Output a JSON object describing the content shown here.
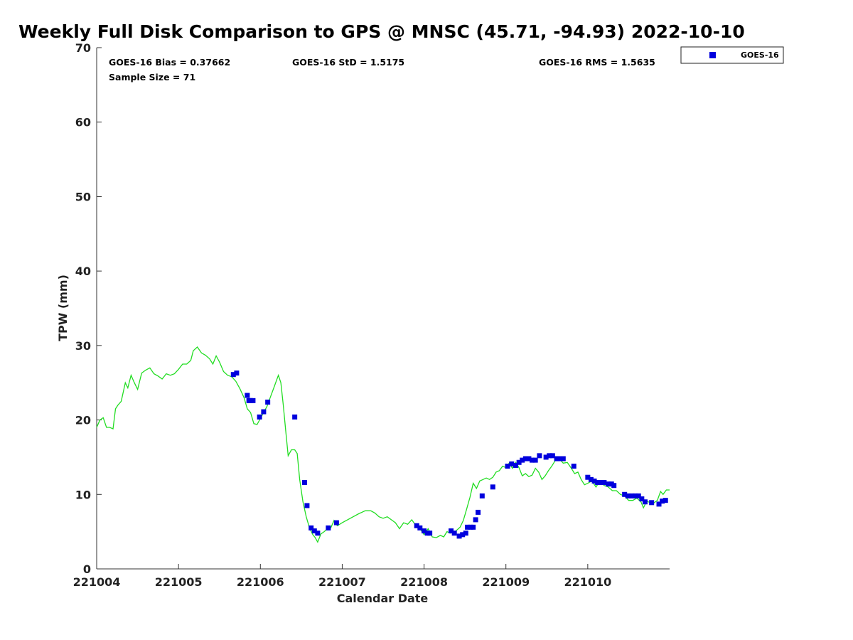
{
  "chart_data": {
    "type": "scatter",
    "title": "Weekly Full Disk Comparison to GPS @ MNSC (45.71, -94.93) 2022-10-10",
    "xlabel": "Calendar Date",
    "ylabel": "TPW (mm)",
    "xlim": [
      221004,
      221011
    ],
    "ylim": [
      0,
      70
    ],
    "xticks": [
      221004,
      221005,
      221006,
      221007,
      221008,
      221009,
      221010
    ],
    "xtick_labels": [
      "221004",
      "221005",
      "221006",
      "221007",
      "221008",
      "221009",
      "221010"
    ],
    "yticks": [
      0,
      10,
      20,
      30,
      40,
      50,
      60,
      70
    ],
    "ytick_labels": [
      "0",
      "10",
      "20",
      "30",
      "40",
      "50",
      "60",
      "70"
    ],
    "grid": false,
    "legend_position": "outside-top-right",
    "stats": {
      "bias": "GOES-16 Bias = 0.37662",
      "std": "GOES-16 StD = 1.5175",
      "rms": "GOES-16 RMS = 1.5635",
      "sample_size": "Sample Size = 71"
    },
    "series": [
      {
        "name": "GOES-16",
        "kind": "scatter",
        "marker": "square",
        "color": "#0000dd",
        "points": [
          [
            221005.67,
            26.1
          ],
          [
            221005.71,
            26.3
          ],
          [
            221005.84,
            23.3
          ],
          [
            221005.86,
            22.6
          ],
          [
            221005.88,
            22.6
          ],
          [
            221005.91,
            22.6
          ],
          [
            221005.99,
            20.4
          ],
          [
            221006.04,
            21.1
          ],
          [
            221006.09,
            22.4
          ],
          [
            221006.42,
            20.4
          ],
          [
            221006.54,
            11.6
          ],
          [
            221006.57,
            8.5
          ],
          [
            221006.62,
            5.5
          ],
          [
            221006.66,
            5.1
          ],
          [
            221006.7,
            4.8
          ],
          [
            221006.83,
            5.5
          ],
          [
            221006.93,
            6.2
          ],
          [
            221007.91,
            5.8
          ],
          [
            221007.95,
            5.5
          ],
          [
            221008.0,
            5.1
          ],
          [
            221008.04,
            4.8
          ],
          [
            221008.07,
            4.8
          ],
          [
            221008.33,
            5.1
          ],
          [
            221008.37,
            4.8
          ],
          [
            221008.43,
            4.4
          ],
          [
            221008.47,
            4.6
          ],
          [
            221008.51,
            4.8
          ],
          [
            221008.53,
            5.6
          ],
          [
            221008.57,
            5.6
          ],
          [
            221008.6,
            5.6
          ],
          [
            221008.63,
            6.6
          ],
          [
            221008.66,
            7.6
          ],
          [
            221008.71,
            9.8
          ],
          [
            221008.84,
            11.0
          ],
          [
            221009.02,
            13.8
          ],
          [
            221009.07,
            14.1
          ],
          [
            221009.12,
            13.9
          ],
          [
            221009.16,
            14.3
          ],
          [
            221009.2,
            14.6
          ],
          [
            221009.24,
            14.8
          ],
          [
            221009.28,
            14.8
          ],
          [
            221009.32,
            14.6
          ],
          [
            221009.36,
            14.6
          ],
          [
            221009.41,
            15.2
          ],
          [
            221009.49,
            15.0
          ],
          [
            221009.53,
            15.2
          ],
          [
            221009.57,
            15.2
          ],
          [
            221009.62,
            14.8
          ],
          [
            221009.66,
            14.8
          ],
          [
            221009.7,
            14.8
          ],
          [
            221009.83,
            13.8
          ],
          [
            221010.0,
            12.3
          ],
          [
            221010.04,
            12.0
          ],
          [
            221010.08,
            11.8
          ],
          [
            221010.12,
            11.6
          ],
          [
            221010.16,
            11.6
          ],
          [
            221010.2,
            11.6
          ],
          [
            221010.25,
            11.4
          ],
          [
            221010.29,
            11.4
          ],
          [
            221010.32,
            11.2
          ],
          [
            221010.45,
            10.0
          ],
          [
            221010.49,
            9.8
          ],
          [
            221010.54,
            9.8
          ],
          [
            221010.58,
            9.8
          ],
          [
            221010.62,
            9.8
          ],
          [
            221010.66,
            9.4
          ],
          [
            221010.7,
            9.0
          ],
          [
            221010.78,
            8.9
          ],
          [
            221010.87,
            8.7
          ],
          [
            221010.91,
            9.1
          ],
          [
            221010.95,
            9.2
          ]
        ]
      },
      {
        "kind": "line",
        "color": "#22dd22",
        "points": [
          [
            221004.0,
            19.0
          ],
          [
            221004.04,
            20.0
          ],
          [
            221004.08,
            20.3
          ],
          [
            221004.12,
            19.0
          ],
          [
            221004.16,
            19.0
          ],
          [
            221004.2,
            18.8
          ],
          [
            221004.23,
            21.5
          ],
          [
            221004.26,
            22.0
          ],
          [
            221004.3,
            22.5
          ],
          [
            221004.35,
            25.0
          ],
          [
            221004.38,
            24.3
          ],
          [
            221004.42,
            26.0
          ],
          [
            221004.46,
            25.0
          ],
          [
            221004.5,
            24.1
          ],
          [
            221004.55,
            26.3
          ],
          [
            221004.6,
            26.7
          ],
          [
            221004.65,
            27.0
          ],
          [
            221004.7,
            26.2
          ],
          [
            221004.75,
            25.9
          ],
          [
            221004.8,
            25.5
          ],
          [
            221004.85,
            26.2
          ],
          [
            221004.9,
            26.0
          ],
          [
            221004.95,
            26.2
          ],
          [
            221005.0,
            26.8
          ],
          [
            221005.05,
            27.5
          ],
          [
            221005.1,
            27.5
          ],
          [
            221005.15,
            28.0
          ],
          [
            221005.18,
            29.3
          ],
          [
            221005.23,
            29.8
          ],
          [
            221005.28,
            29.0
          ],
          [
            221005.33,
            28.7
          ],
          [
            221005.38,
            28.2
          ],
          [
            221005.42,
            27.5
          ],
          [
            221005.46,
            28.6
          ],
          [
            221005.5,
            27.8
          ],
          [
            221005.55,
            26.5
          ],
          [
            221005.6,
            26.0
          ],
          [
            221005.65,
            25.8
          ],
          [
            221005.7,
            25.2
          ],
          [
            221005.75,
            24.2
          ],
          [
            221005.8,
            23.0
          ],
          [
            221005.84,
            21.5
          ],
          [
            221005.88,
            21.0
          ],
          [
            221005.92,
            19.5
          ],
          [
            221005.96,
            19.4
          ],
          [
            221006.0,
            20.2
          ],
          [
            221006.04,
            21.0
          ],
          [
            221006.08,
            21.8
          ],
          [
            221006.12,
            23.0
          ],
          [
            221006.17,
            24.5
          ],
          [
            221006.22,
            26.0
          ],
          [
            221006.25,
            25.0
          ],
          [
            221006.28,
            22.0
          ],
          [
            221006.31,
            18.5
          ],
          [
            221006.34,
            15.2
          ],
          [
            221006.38,
            16.0
          ],
          [
            221006.42,
            16.0
          ],
          [
            221006.45,
            15.5
          ],
          [
            221006.48,
            12.0
          ],
          [
            221006.52,
            9.0
          ],
          [
            221006.56,
            7.0
          ],
          [
            221006.6,
            5.5
          ],
          [
            221006.64,
            4.6
          ],
          [
            221006.67,
            4.2
          ],
          [
            221006.7,
            3.6
          ],
          [
            221006.74,
            4.7
          ],
          [
            221006.78,
            5.0
          ],
          [
            221006.82,
            5.4
          ],
          [
            221006.86,
            5.5
          ],
          [
            221006.9,
            6.5
          ],
          [
            221006.94,
            5.8
          ],
          [
            221007.0,
            6.2
          ],
          [
            221007.1,
            6.8
          ],
          [
            221007.2,
            7.4
          ],
          [
            221007.28,
            7.8
          ],
          [
            221007.35,
            7.8
          ],
          [
            221007.4,
            7.5
          ],
          [
            221007.45,
            7.0
          ],
          [
            221007.5,
            6.8
          ],
          [
            221007.55,
            7.0
          ],
          [
            221007.6,
            6.6
          ],
          [
            221007.65,
            6.2
          ],
          [
            221007.7,
            5.4
          ],
          [
            221007.75,
            6.2
          ],
          [
            221007.8,
            6.0
          ],
          [
            221007.85,
            6.6
          ],
          [
            221007.9,
            5.8
          ],
          [
            221007.95,
            5.4
          ],
          [
            221008.0,
            4.6
          ],
          [
            221008.05,
            5.4
          ],
          [
            221008.1,
            4.3
          ],
          [
            221008.15,
            4.2
          ],
          [
            221008.2,
            4.5
          ],
          [
            221008.24,
            4.3
          ],
          [
            221008.28,
            5.0
          ],
          [
            221008.32,
            4.8
          ],
          [
            221008.38,
            5.0
          ],
          [
            221008.44,
            5.6
          ],
          [
            221008.48,
            6.5
          ],
          [
            221008.52,
            8.0
          ],
          [
            221008.56,
            9.6
          ],
          [
            221008.6,
            11.5
          ],
          [
            221008.64,
            10.8
          ],
          [
            221008.68,
            11.8
          ],
          [
            221008.72,
            12.0
          ],
          [
            221008.76,
            12.2
          ],
          [
            221008.8,
            12.0
          ],
          [
            221008.84,
            12.3
          ],
          [
            221008.88,
            13.0
          ],
          [
            221008.92,
            13.2
          ],
          [
            221008.96,
            13.8
          ],
          [
            221009.0,
            13.6
          ],
          [
            221009.04,
            14.2
          ],
          [
            221009.08,
            13.5
          ],
          [
            221009.12,
            14.3
          ],
          [
            221009.16,
            13.6
          ],
          [
            221009.2,
            12.5
          ],
          [
            221009.24,
            12.8
          ],
          [
            221009.28,
            12.4
          ],
          [
            221009.32,
            12.6
          ],
          [
            221009.36,
            13.5
          ],
          [
            221009.4,
            13.0
          ],
          [
            221009.44,
            12.0
          ],
          [
            221009.48,
            12.5
          ],
          [
            221009.52,
            13.2
          ],
          [
            221009.56,
            13.8
          ],
          [
            221009.6,
            14.5
          ],
          [
            221009.65,
            14.8
          ],
          [
            221009.7,
            14.2
          ],
          [
            221009.75,
            14.3
          ],
          [
            221009.8,
            13.5
          ],
          [
            221009.84,
            12.8
          ],
          [
            221009.88,
            13.0
          ],
          [
            221009.92,
            12.0
          ],
          [
            221009.96,
            11.3
          ],
          [
            221010.0,
            11.5
          ],
          [
            221010.05,
            11.8
          ],
          [
            221010.1,
            11.0
          ],
          [
            221010.15,
            11.8
          ],
          [
            221010.2,
            11.2
          ],
          [
            221010.25,
            11.0
          ],
          [
            221010.3,
            10.5
          ],
          [
            221010.35,
            10.5
          ],
          [
            221010.4,
            10.0
          ],
          [
            221010.45,
            9.8
          ],
          [
            221010.5,
            9.2
          ],
          [
            221010.55,
            9.2
          ],
          [
            221010.6,
            9.5
          ],
          [
            221010.65,
            9.0
          ],
          [
            221010.68,
            8.2
          ],
          [
            221010.72,
            9.1
          ],
          [
            221010.76,
            8.9
          ],
          [
            221010.8,
            8.8
          ],
          [
            221010.85,
            9.2
          ],
          [
            221010.89,
            10.4
          ],
          [
            221010.92,
            10.0
          ],
          [
            221010.96,
            10.6
          ],
          [
            221011.0,
            10.6
          ]
        ]
      }
    ]
  }
}
